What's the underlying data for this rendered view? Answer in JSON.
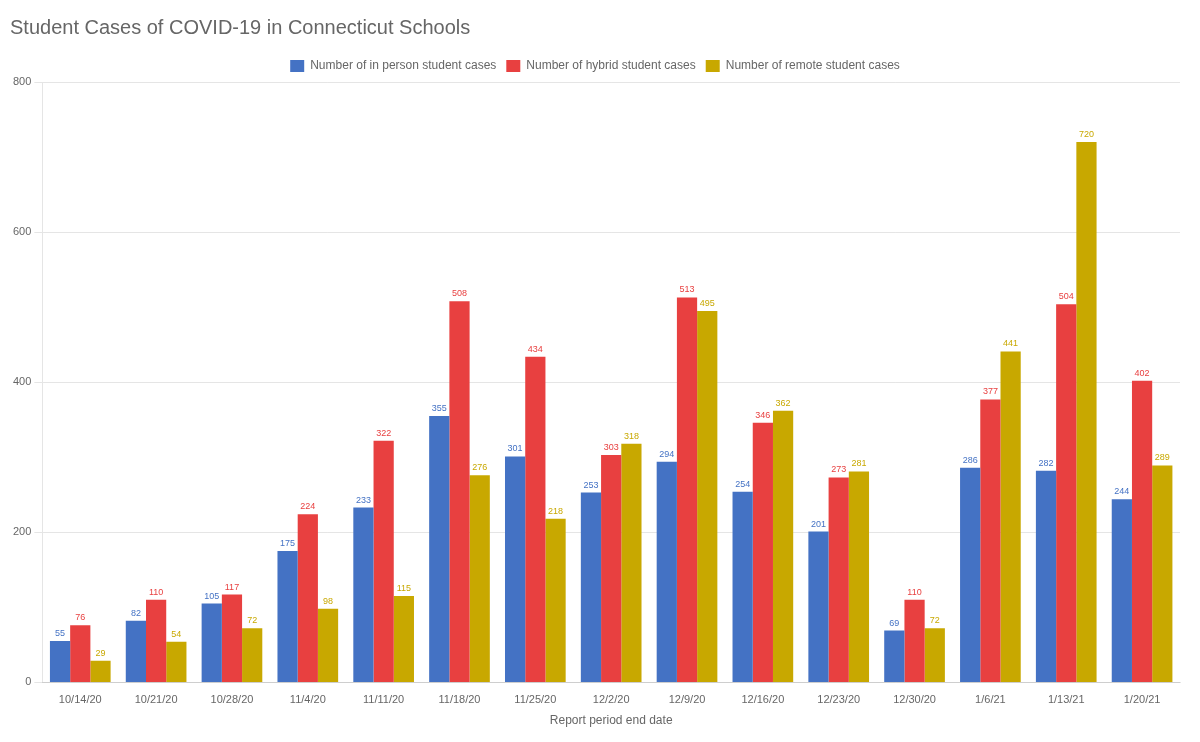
{
  "chart_data": {
    "type": "bar",
    "title": "Student Cases of COVID-19 in Connecticut Schools",
    "xlabel": "Report period end date",
    "categories": [
      "10/14/20",
      "10/21/20",
      "10/28/20",
      "11/4/20",
      "11/11/20",
      "11/18/20",
      "11/25/20",
      "12/2/20",
      "12/9/20",
      "12/16/20",
      "12/23/20",
      "12/30/20",
      "1/6/21",
      "1/13/21",
      "1/20/21"
    ],
    "series": [
      {
        "name": "Number of in person student cases",
        "color": "#4472C4",
        "values": [
          55,
          82,
          105,
          175,
          233,
          355,
          301,
          253,
          294,
          254,
          201,
          69,
          286,
          282,
          244
        ]
      },
      {
        "name": "Number of hybrid student cases",
        "color": "#E84040",
        "values": [
          76,
          110,
          117,
          224,
          322,
          508,
          434,
          303,
          513,
          346,
          273,
          110,
          377,
          504,
          402
        ]
      },
      {
        "name": "Number of remote student cases",
        "color": "#C8A800",
        "values": [
          29,
          54,
          72,
          98,
          115,
          276,
          218,
          318,
          495,
          362,
          281,
          72,
          441,
          720,
          289
        ]
      }
    ],
    "ylim": [
      0,
      800
    ],
    "yticks": [
      0,
      200,
      400,
      600,
      800
    ],
    "grid": true,
    "legend": "top",
    "data_labels": true
  }
}
